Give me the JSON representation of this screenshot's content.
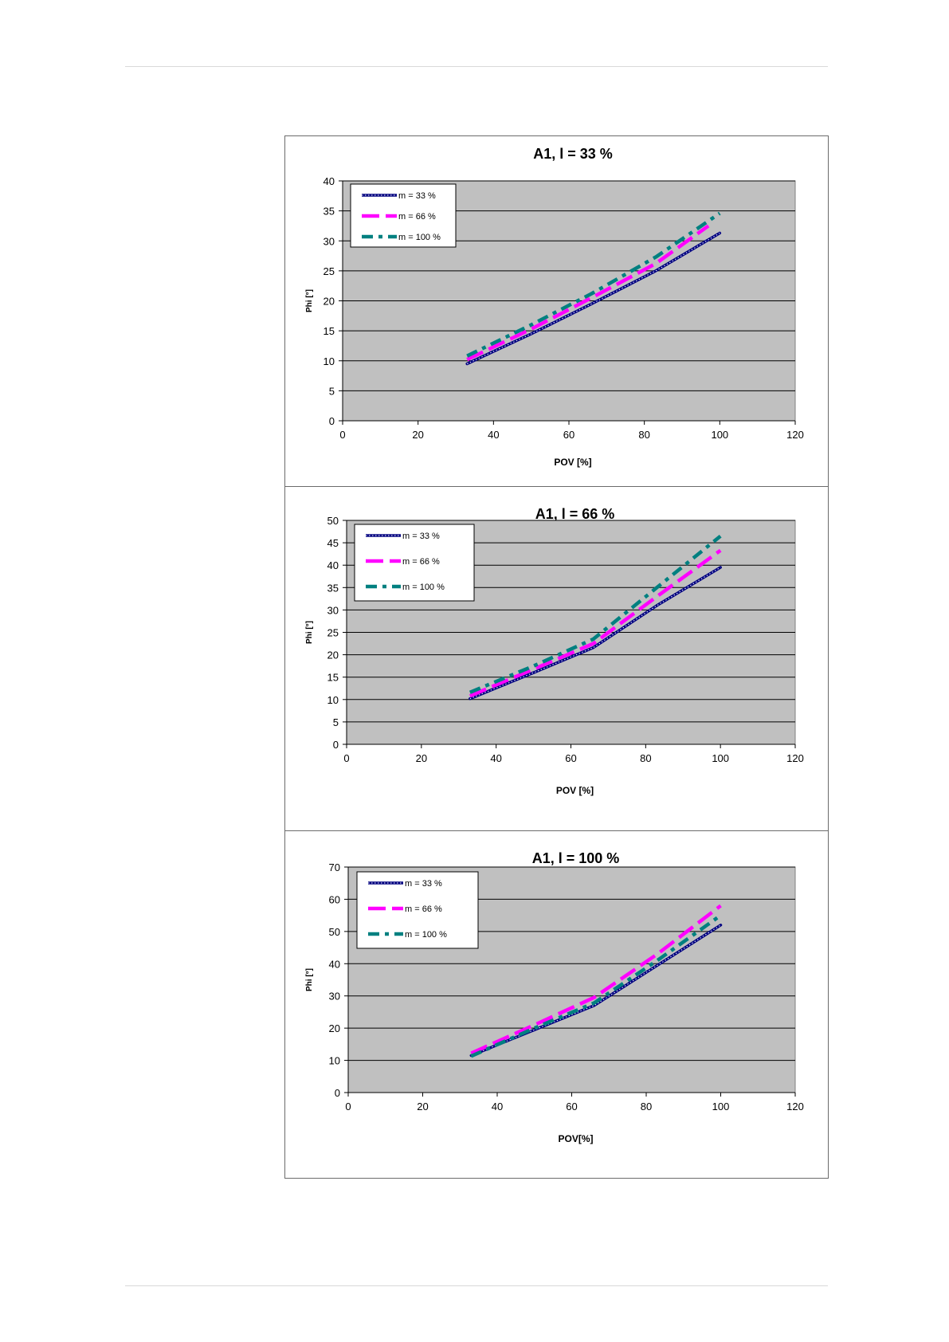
{
  "chart_data": [
    {
      "type": "line",
      "title": "A1, l = 33 %",
      "xlabel": "POV [%]",
      "ylabel": "Phi [°]",
      "xlim": [
        0,
        120
      ],
      "ylim": [
        0,
        40
      ],
      "xticks": [
        0,
        20,
        40,
        60,
        80,
        100,
        120
      ],
      "yticks": [
        0,
        5,
        10,
        15,
        20,
        25,
        30,
        35,
        40
      ],
      "grid": true,
      "plot_background": "#c0c0c0",
      "legend_position": "top-left",
      "series": [
        {
          "name": "m = 33 %",
          "color": "#000080",
          "style": "dotted-heavy",
          "x": [
            33,
            50,
            66,
            83,
            100
          ],
          "y": [
            9.5,
            14.5,
            19.5,
            25.0,
            31.3
          ]
        },
        {
          "name": "m = 66 %",
          "color": "#ff00ff",
          "style": "long-dash",
          "x": [
            33,
            50,
            66,
            83,
            97
          ],
          "y": [
            10.2,
            15.3,
            20.5,
            26.2,
            32.5
          ]
        },
        {
          "name": "m = 100 %",
          "color": "#008080",
          "style": "dash-dot",
          "x": [
            33,
            50,
            66,
            83,
            100
          ],
          "y": [
            10.8,
            16.0,
            21.2,
            27.3,
            34.6
          ]
        }
      ]
    },
    {
      "type": "line",
      "title": "A1,  l = 66 %",
      "xlabel": "POV [%]",
      "ylabel": "Phi [°]",
      "xlim": [
        0,
        120
      ],
      "ylim": [
        0,
        50
      ],
      "xticks": [
        0,
        20,
        40,
        60,
        80,
        100,
        120
      ],
      "yticks": [
        0,
        5,
        10,
        15,
        20,
        25,
        30,
        35,
        40,
        45,
        50
      ],
      "grid": true,
      "plot_background": "#c0c0c0",
      "legend_position": "top-left",
      "series": [
        {
          "name": "m = 33 %",
          "color": "#000080",
          "style": "dotted-heavy",
          "x": [
            33,
            50,
            66,
            83,
            100
          ],
          "y": [
            10.2,
            16.0,
            21.6,
            31.0,
            39.5
          ]
        },
        {
          "name": "m = 66 %",
          "color": "#ff00ff",
          "style": "long-dash",
          "x": [
            33,
            50,
            66,
            83,
            100
          ],
          "y": [
            10.8,
            16.8,
            22.5,
            33.0,
            43.3
          ]
        },
        {
          "name": "m = 100 %",
          "color": "#008080",
          "style": "dash-dot",
          "x": [
            33,
            50,
            66,
            83,
            100
          ],
          "y": [
            11.6,
            17.5,
            23.5,
            35.0,
            46.5
          ]
        }
      ]
    },
    {
      "type": "line",
      "title": "A1,  l = 100 %",
      "xlabel": "POV[%]",
      "ylabel": "Phi [°]",
      "xlim": [
        0,
        120
      ],
      "ylim": [
        0,
        70
      ],
      "xticks": [
        0,
        20,
        40,
        60,
        80,
        100,
        120
      ],
      "yticks": [
        0,
        10,
        20,
        30,
        40,
        50,
        60,
        70
      ],
      "grid": true,
      "plot_background": "#c0c0c0",
      "legend_position": "top-left",
      "series": [
        {
          "name": "m = 33 %",
          "color": "#000080",
          "style": "dotted-heavy",
          "x": [
            33,
            50,
            66,
            83,
            100
          ],
          "y": [
            11.5,
            19.5,
            27.0,
            39.5,
            52.0
          ]
        },
        {
          "name": "m = 66 %",
          "color": "#ff00ff",
          "style": "long-dash",
          "x": [
            33,
            50,
            66,
            83,
            100
          ],
          "y": [
            12.2,
            21.0,
            29.5,
            43.0,
            58.0
          ]
        },
        {
          "name": "m = 100 %",
          "color": "#008080",
          "style": "dash-dot",
          "x": [
            33,
            50,
            66,
            83,
            100
          ],
          "y": [
            11.3,
            20.0,
            27.8,
            41.0,
            55.0
          ]
        }
      ]
    }
  ]
}
